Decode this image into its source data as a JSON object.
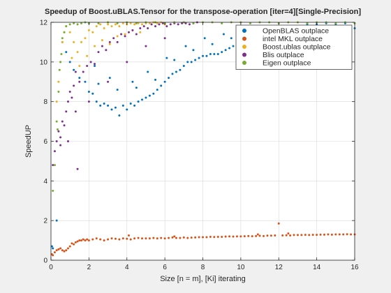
{
  "chart_data": {
    "type": "scatter",
    "title": "Speedup of Boost.uBLAS.Tensor for the transpose-operation [iter=4][Single-Precision]",
    "xlabel": "Size [n = m], [Ki] iterating",
    "ylabel": "SpeedUP",
    "xlim": [
      0,
      16
    ],
    "ylim": [
      0,
      12
    ],
    "xticks": [
      "0",
      "2",
      "4",
      "6",
      "8",
      "10",
      "12",
      "14",
      "16"
    ],
    "yticks": [
      "0",
      "2",
      "4",
      "6",
      "8",
      "10",
      "12"
    ],
    "grid": true,
    "legend_position": "top-right",
    "series": [
      {
        "name": "OpenBLAS outplace",
        "color": "#0072BD",
        "points": [
          [
            0.05,
            0.7
          ],
          [
            0.1,
            0.6
          ],
          [
            0.3,
            2.0
          ],
          [
            0.6,
            11.0
          ],
          [
            0.8,
            10.5
          ],
          [
            1.0,
            10.0
          ],
          [
            1.2,
            9.6
          ],
          [
            1.5,
            9.2
          ],
          [
            1.8,
            9.0
          ],
          [
            2.0,
            8.5
          ],
          [
            2.2,
            8.4
          ],
          [
            2.4,
            8.0
          ],
          [
            2.6,
            7.8
          ],
          [
            2.8,
            7.9
          ],
          [
            3.0,
            7.8
          ],
          [
            3.2,
            7.6
          ],
          [
            3.4,
            7.7
          ],
          [
            3.6,
            7.3
          ],
          [
            3.8,
            7.8
          ],
          [
            4.0,
            7.6
          ],
          [
            4.2,
            7.9
          ],
          [
            4.4,
            7.8
          ],
          [
            4.6,
            8.0
          ],
          [
            4.8,
            8.1
          ],
          [
            5.0,
            8.2
          ],
          [
            5.2,
            8.3
          ],
          [
            5.4,
            8.4
          ],
          [
            5.6,
            8.6
          ],
          [
            5.8,
            8.8
          ],
          [
            6.0,
            9.0
          ],
          [
            6.2,
            9.2
          ],
          [
            6.4,
            9.4
          ],
          [
            6.6,
            9.5
          ],
          [
            6.8,
            9.6
          ],
          [
            7.0,
            9.8
          ],
          [
            7.2,
            10.0
          ],
          [
            7.4,
            10.0
          ],
          [
            7.6,
            10.1
          ],
          [
            7.8,
            10.2
          ],
          [
            8.0,
            10.3
          ],
          [
            8.2,
            10.3
          ],
          [
            8.4,
            10.4
          ],
          [
            8.6,
            10.4
          ],
          [
            8.8,
            10.4
          ],
          [
            9.0,
            10.5
          ],
          [
            9.2,
            10.6
          ],
          [
            9.4,
            10.7
          ],
          [
            9.6,
            10.8
          ],
          [
            9.8,
            10.8
          ],
          [
            10.0,
            10.9
          ],
          [
            10.5,
            11.1
          ],
          [
            11.0,
            11.3
          ],
          [
            11.5,
            11.4
          ],
          [
            12.0,
            11.6
          ],
          [
            12.5,
            11.7
          ],
          [
            13.0,
            11.8
          ],
          [
            13.5,
            11.9
          ],
          [
            14.0,
            11.9
          ],
          [
            14.5,
            11.95
          ],
          [
            15.0,
            11.9
          ],
          [
            15.5,
            11.95
          ],
          [
            16.0,
            11.7
          ],
          [
            2.3,
            9.8
          ],
          [
            3.1,
            9.2
          ],
          [
            4.3,
            9.0
          ],
          [
            5.1,
            9.5
          ],
          [
            6.1,
            10.2
          ],
          [
            7.1,
            10.8
          ],
          [
            8.1,
            11.2
          ],
          [
            9.1,
            11.4
          ],
          [
            2.5,
            8.9
          ],
          [
            3.5,
            8.6
          ],
          [
            4.5,
            8.7
          ],
          [
            5.5,
            9.1
          ],
          [
            6.5,
            10.1
          ],
          [
            7.5,
            10.6
          ],
          [
            8.5,
            10.9
          ],
          [
            9.5,
            11.2
          ]
        ]
      },
      {
        "name": "intel MKL outplace",
        "color": "#D95319",
        "points": [
          [
            0.05,
            0.3
          ],
          [
            0.1,
            0.25
          ],
          [
            0.2,
            0.4
          ],
          [
            0.3,
            0.5
          ],
          [
            0.4,
            0.55
          ],
          [
            0.5,
            0.6
          ],
          [
            0.6,
            0.5
          ],
          [
            0.7,
            0.45
          ],
          [
            0.8,
            0.5
          ],
          [
            0.9,
            0.6
          ],
          [
            1.0,
            0.7
          ],
          [
            1.1,
            0.85
          ],
          [
            1.2,
            0.8
          ],
          [
            1.3,
            0.9
          ],
          [
            1.4,
            0.95
          ],
          [
            1.5,
            1.0
          ],
          [
            1.6,
            1.0
          ],
          [
            1.7,
            1.05
          ],
          [
            1.8,
            1.0
          ],
          [
            1.9,
            1.05
          ],
          [
            2.0,
            1.0
          ],
          [
            2.2,
            1.05
          ],
          [
            2.4,
            1.1
          ],
          [
            2.6,
            1.05
          ],
          [
            2.8,
            1.0
          ],
          [
            3.0,
            1.05
          ],
          [
            3.2,
            1.1
          ],
          [
            3.4,
            1.08
          ],
          [
            3.6,
            1.05
          ],
          [
            3.8,
            1.1
          ],
          [
            4.0,
            1.08
          ],
          [
            4.2,
            1.05
          ],
          [
            4.4,
            1.1
          ],
          [
            4.6,
            1.12
          ],
          [
            4.8,
            1.1
          ],
          [
            5.0,
            1.1
          ],
          [
            5.2,
            1.1
          ],
          [
            5.4,
            1.12
          ],
          [
            5.6,
            1.1
          ],
          [
            5.8,
            1.12
          ],
          [
            6.0,
            1.1
          ],
          [
            6.2,
            1.12
          ],
          [
            6.4,
            1.15
          ],
          [
            6.6,
            1.12
          ],
          [
            6.8,
            1.12
          ],
          [
            7.0,
            1.15
          ],
          [
            7.2,
            1.12
          ],
          [
            7.4,
            1.14
          ],
          [
            7.6,
            1.15
          ],
          [
            7.8,
            1.16
          ],
          [
            8.0,
            1.16
          ],
          [
            8.2,
            1.16
          ],
          [
            8.4,
            1.18
          ],
          [
            8.6,
            1.17
          ],
          [
            8.8,
            1.18
          ],
          [
            9.0,
            1.18
          ],
          [
            9.2,
            1.19
          ],
          [
            9.4,
            1.2
          ],
          [
            9.6,
            1.19
          ],
          [
            9.8,
            1.2
          ],
          [
            10.0,
            1.2
          ],
          [
            10.2,
            1.21
          ],
          [
            10.4,
            1.22
          ],
          [
            10.6,
            1.21
          ],
          [
            10.8,
            1.22
          ],
          [
            11.0,
            1.23
          ],
          [
            11.2,
            1.22
          ],
          [
            11.4,
            1.24
          ],
          [
            11.6,
            1.24
          ],
          [
            11.8,
            1.25
          ],
          [
            12.0,
            1.85
          ],
          [
            12.2,
            1.25
          ],
          [
            12.4,
            1.26
          ],
          [
            12.6,
            1.25
          ],
          [
            12.8,
            1.27
          ],
          [
            13.0,
            1.27
          ],
          [
            13.2,
            1.27
          ],
          [
            13.4,
            1.28
          ],
          [
            13.6,
            1.27
          ],
          [
            13.8,
            1.28
          ],
          [
            14.0,
            1.28
          ],
          [
            14.2,
            1.29
          ],
          [
            14.4,
            1.29
          ],
          [
            14.6,
            1.3
          ],
          [
            14.8,
            1.29
          ],
          [
            15.0,
            1.3
          ],
          [
            15.2,
            1.3
          ],
          [
            15.4,
            1.3
          ],
          [
            15.6,
            1.31
          ],
          [
            15.8,
            1.3
          ],
          [
            16.0,
            1.3
          ],
          [
            4.1,
            1.25
          ],
          [
            6.5,
            1.2
          ],
          [
            10.9,
            1.3
          ],
          [
            12.5,
            1.35
          ]
        ]
      },
      {
        "name": "Boost.ublas outplace",
        "color": "#EDB120",
        "points": [
          [
            0.3,
            8.0
          ],
          [
            0.4,
            9.0
          ],
          [
            0.5,
            10.0
          ],
          [
            0.6,
            11.0
          ],
          [
            0.7,
            11.5
          ],
          [
            0.8,
            11.8
          ],
          [
            1.0,
            11.5
          ],
          [
            1.2,
            11.0
          ],
          [
            1.4,
            10.5
          ],
          [
            1.6,
            11.0
          ],
          [
            1.8,
            11.2
          ],
          [
            2.0,
            11.6
          ],
          [
            2.2,
            11.5
          ],
          [
            2.4,
            11.8
          ],
          [
            2.6,
            11.9
          ],
          [
            2.8,
            11.7
          ],
          [
            3.0,
            11.9
          ],
          [
            3.2,
            11.8
          ],
          [
            3.4,
            11.9
          ],
          [
            3.6,
            11.8
          ],
          [
            3.8,
            11.95
          ],
          [
            4.0,
            11.9
          ],
          [
            4.2,
            11.95
          ],
          [
            4.4,
            11.9
          ],
          [
            4.6,
            11.95
          ],
          [
            4.8,
            11.9
          ],
          [
            5.0,
            11.95
          ],
          [
            5.2,
            11.95
          ],
          [
            5.4,
            12.0
          ],
          [
            5.6,
            11.95
          ],
          [
            5.8,
            12.0
          ],
          [
            6.0,
            11.9
          ],
          [
            1.1,
            10.2
          ],
          [
            1.5,
            9.8
          ],
          [
            1.9,
            10.3
          ],
          [
            2.3,
            10.8
          ],
          [
            2.7,
            11.1
          ],
          [
            3.1,
            10.9
          ],
          [
            3.5,
            11.3
          ],
          [
            3.9,
            11.4
          ],
          [
            4.3,
            11.6
          ],
          [
            4.7,
            11.5
          ]
        ]
      },
      {
        "name": "Blis outplace",
        "color": "#7E2F8E",
        "points": [
          [
            0.1,
            4.8
          ],
          [
            0.2,
            5.5
          ],
          [
            0.3,
            6.0
          ],
          [
            0.4,
            6.5
          ],
          [
            0.5,
            6.2
          ],
          [
            0.6,
            7.0
          ],
          [
            0.7,
            6.8
          ],
          [
            0.8,
            7.5
          ],
          [
            0.9,
            8.0
          ],
          [
            1.0,
            8.5
          ],
          [
            1.1,
            8.2
          ],
          [
            1.2,
            8.8
          ],
          [
            1.3,
            7.5
          ],
          [
            1.4,
            4.6
          ],
          [
            1.5,
            9.0
          ],
          [
            1.7,
            9.5
          ],
          [
            1.9,
            9.8
          ],
          [
            2.1,
            10.0
          ],
          [
            2.3,
            9.9
          ],
          [
            2.5,
            10.5
          ],
          [
            2.7,
            10.8
          ],
          [
            2.9,
            10.6
          ],
          [
            3.1,
            11.0
          ],
          [
            3.3,
            11.2
          ],
          [
            3.5,
            11.0
          ],
          [
            3.7,
            11.4
          ],
          [
            3.9,
            11.3
          ],
          [
            4.1,
            11.5
          ],
          [
            4.3,
            11.6
          ],
          [
            4.5,
            11.4
          ],
          [
            4.7,
            11.7
          ],
          [
            4.9,
            11.8
          ],
          [
            5.1,
            11.7
          ],
          [
            5.3,
            11.9
          ],
          [
            5.5,
            11.8
          ],
          [
            5.7,
            11.9
          ],
          [
            5.9,
            11.95
          ],
          [
            6.1,
            11.8
          ],
          [
            6.3,
            11.9
          ],
          [
            6.5,
            11.95
          ],
          [
            6.7,
            11.9
          ],
          [
            6.9,
            11.95
          ],
          [
            7.1,
            11.95
          ],
          [
            7.3,
            11.9
          ],
          [
            7.5,
            11.95
          ],
          [
            7.7,
            12.0
          ],
          [
            0.5,
            5.8
          ],
          [
            0.9,
            6.0
          ],
          [
            1.3,
            9.5
          ],
          [
            2.0,
            8.0
          ],
          [
            3.0,
            9.0
          ],
          [
            4.0,
            10.0
          ],
          [
            5.0,
            10.8
          ],
          [
            6.0,
            11.2
          ]
        ]
      },
      {
        "name": "Eigen outplace",
        "color": "#77AC30",
        "points": [
          [
            0.1,
            3.5
          ],
          [
            0.2,
            4.8
          ],
          [
            0.3,
            7.0
          ],
          [
            0.4,
            8.5
          ],
          [
            0.5,
            10.0
          ],
          [
            0.6,
            11.2
          ],
          [
            0.7,
            11.5
          ],
          [
            0.8,
            11.8
          ],
          [
            1.0,
            11.9
          ],
          [
            1.2,
            11.95
          ],
          [
            1.4,
            11.9
          ],
          [
            1.6,
            11.95
          ],
          [
            1.8,
            12.0
          ],
          [
            2.0,
            11.95
          ],
          [
            2.5,
            11.95
          ],
          [
            3.0,
            12.0
          ],
          [
            3.5,
            11.95
          ],
          [
            4.0,
            12.0
          ],
          [
            4.5,
            11.95
          ],
          [
            5.0,
            12.0
          ],
          [
            5.5,
            12.0
          ],
          [
            6.0,
            11.95
          ],
          [
            6.5,
            12.0
          ],
          [
            7.0,
            12.0
          ],
          [
            7.5,
            11.95
          ],
          [
            8.0,
            12.0
          ],
          [
            8.5,
            12.0
          ],
          [
            9.0,
            11.95
          ],
          [
            9.5,
            12.0
          ],
          [
            10.0,
            12.0
          ],
          [
            10.5,
            11.95
          ],
          [
            11.0,
            12.0
          ],
          [
            11.5,
            12.0
          ],
          [
            12.0,
            11.95
          ],
          [
            12.5,
            12.0
          ],
          [
            13.0,
            12.0
          ],
          [
            13.5,
            11.95
          ],
          [
            14.0,
            12.0
          ],
          [
            14.5,
            12.0
          ],
          [
            15.0,
            11.95
          ],
          [
            15.5,
            12.0
          ],
          [
            16.0,
            11.95
          ],
          [
            0.35,
            6.6
          ],
          [
            0.45,
            9.6
          ],
          [
            0.55,
            10.4
          ]
        ]
      }
    ]
  }
}
